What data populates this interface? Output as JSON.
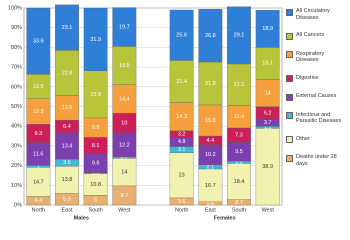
{
  "chart_data": {
    "type": "stacked_bar",
    "groups": [
      {
        "name": "Males",
        "categories": [
          "North",
          "East",
          "South",
          "West"
        ]
      },
      {
        "name": "Females",
        "categories": [
          "North",
          "East",
          "South",
          "West"
        ]
      }
    ],
    "series": [
      {
        "name": "All Circulatory Diseases",
        "color": "#2f7fd8",
        "values": [
          33.6,
          23.1,
          31.9,
          19.7,
          25.6,
          26.8,
          29.1,
          18.9
        ]
      },
      {
        "name": "All Cancers",
        "color": "#b8c43a",
        "values": [
          12.5,
          22.8,
          23.9,
          19.5,
          21.4,
          21.8,
          21.1,
          16.1
        ]
      },
      {
        "name": "Respiratory Diseases",
        "color": "#f5a03c",
        "values": [
          12.9,
          12.6,
          9.9,
          14.4,
          14.3,
          15.8,
          11.4,
          14.0
        ]
      },
      {
        "name": "Digestive",
        "color": "#cc1f5a",
        "values": [
          9.3,
          6.4,
          8.1,
          10.0,
          3.2,
          4.4,
          7.3,
          6.2
        ]
      },
      {
        "name": "External Causes",
        "color": "#7b3fb0",
        "values": [
          11.6,
          13.4,
          9.8,
          12.2,
          4.8,
          10.2,
          9.5,
          3.7
        ]
      },
      {
        "name": "Infectious and Parasitic Diseases",
        "color": "#3cb8d8",
        "values": [
          1.0,
          3.6,
          0.6,
          0.7,
          3.1,
          2.1,
          1.2,
          1.1
        ]
      },
      {
        "name": "Other",
        "color": "#f2f2b0",
        "values": [
          14.7,
          13.8,
          10.8,
          14.0,
          23.0,
          16.7,
          18.4,
          38.9
        ]
      },
      {
        "name": "Deaths under 28 days",
        "color": "#e8b070",
        "values": [
          4.4,
          5.9,
          5.0,
          9.7,
          3.6,
          1.6,
          2.7,
          0.0
        ]
      }
    ],
    "ylim": [
      0,
      100
    ],
    "yticks": [
      {
        "value": 0,
        "label": "0%"
      },
      {
        "value": 10,
        "label": "10%"
      },
      {
        "value": 20,
        "label": "20%"
      },
      {
        "value": 30,
        "label": "30%"
      },
      {
        "value": 40,
        "label": "40%"
      },
      {
        "value": 50,
        "label": "50%"
      },
      {
        "value": 60,
        "label": "60%"
      },
      {
        "value": 70,
        "label": "70%"
      },
      {
        "value": 80,
        "label": "80%"
      },
      {
        "value": 90,
        "label": "90%"
      },
      {
        "value": 100,
        "label": "100%"
      }
    ],
    "grid": true
  }
}
